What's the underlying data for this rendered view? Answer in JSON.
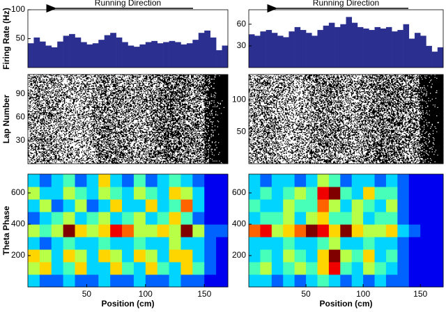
{
  "chart_data": [
    {
      "type": "histogram",
      "annotation": "Running Direction",
      "ylabel": "Firing Rate (Hz)",
      "color": "#2b2f8f",
      "xlim": [
        0,
        170
      ],
      "ylim": [
        0,
        100
      ],
      "yticks": [
        50,
        100
      ],
      "bins": [
        0,
        5,
        10,
        15,
        20,
        25,
        30,
        35,
        40,
        45,
        50,
        55,
        60,
        65,
        70,
        75,
        80,
        85,
        90,
        95,
        100,
        105,
        110,
        115,
        120,
        125,
        130,
        135,
        140,
        145,
        150,
        155,
        160,
        165,
        170
      ],
      "values": [
        42,
        52,
        45,
        38,
        35,
        45,
        55,
        58,
        52,
        44,
        40,
        42,
        48,
        56,
        60,
        52,
        44,
        38,
        36,
        40,
        44,
        46,
        42,
        44,
        46,
        44,
        40,
        42,
        48,
        60,
        64,
        52,
        30,
        38
      ]
    },
    {
      "type": "histogram",
      "annotation": "Running Direction",
      "color": "#2b2f8f",
      "xlim": [
        0,
        170
      ],
      "ylim": [
        0,
        80
      ],
      "yticks": [
        30,
        60
      ],
      "bins": [
        0,
        5,
        10,
        15,
        20,
        25,
        30,
        35,
        40,
        45,
        50,
        55,
        60,
        65,
        70,
        75,
        80,
        85,
        90,
        95,
        100,
        105,
        110,
        115,
        120,
        125,
        130,
        135,
        140,
        145,
        150,
        155,
        160,
        165,
        170
      ],
      "values": [
        46,
        44,
        50,
        52,
        48,
        44,
        42,
        50,
        56,
        52,
        48,
        44,
        52,
        58,
        62,
        56,
        60,
        70,
        62,
        56,
        54,
        52,
        56,
        54,
        56,
        50,
        52,
        60,
        40,
        48,
        44,
        30,
        22,
        28
      ]
    },
    {
      "type": "raster",
      "ylabel": "Lap Number",
      "xlim": [
        0,
        170
      ],
      "ylim": [
        0,
        115
      ],
      "yticks": [
        30,
        60,
        90
      ]
    },
    {
      "type": "raster",
      "xlim": [
        0,
        170
      ],
      "ylim": [
        0,
        140
      ],
      "yticks": [
        50,
        100
      ]
    },
    {
      "type": "heatmap",
      "ylabel": "Theta Phase",
      "xlabel": "Position (cm)",
      "colormap": "jet",
      "xlim": [
        0,
        170
      ],
      "xticks": [
        50,
        100,
        150
      ],
      "ylim": [
        0,
        720
      ],
      "yticks": [
        200,
        400,
        600
      ],
      "z": [
        [
          3,
          2,
          2,
          3,
          2,
          2,
          3,
          2,
          2,
          3,
          2,
          2,
          3,
          2,
          2,
          1,
          1
        ],
        [
          5,
          6,
          3,
          4,
          6,
          3,
          3,
          6,
          4,
          3,
          6,
          4,
          3,
          6,
          4,
          2,
          1
        ],
        [
          6,
          5,
          3,
          6,
          5,
          3,
          6,
          5,
          3,
          6,
          5,
          3,
          6,
          6,
          3,
          2,
          1
        ],
        [
          3,
          2,
          3,
          4,
          3,
          3,
          4,
          3,
          3,
          4,
          3,
          3,
          5,
          3,
          3,
          2,
          1
        ],
        [
          5,
          4,
          5,
          9,
          6,
          5,
          6,
          8,
          7,
          5,
          5,
          6,
          5,
          9,
          5,
          2,
          2
        ],
        [
          2,
          3,
          4,
          5,
          3,
          4,
          5,
          3,
          4,
          5,
          3,
          4,
          6,
          4,
          2,
          1,
          1
        ],
        [
          3,
          5,
          2,
          3,
          5,
          2,
          3,
          6,
          3,
          3,
          6,
          3,
          4,
          7,
          3,
          1,
          1
        ],
        [
          5,
          3,
          3,
          5,
          4,
          3,
          5,
          4,
          3,
          5,
          4,
          3,
          6,
          5,
          3,
          1,
          1
        ],
        [
          3,
          2,
          3,
          4,
          2,
          3,
          6,
          3,
          2,
          4,
          2,
          3,
          4,
          3,
          2,
          1,
          1
        ]
      ]
    },
    {
      "type": "heatmap",
      "xlabel": "Position (cm)",
      "colormap": "jet",
      "xlim": [
        0,
        170
      ],
      "xticks": [
        50,
        100,
        150
      ],
      "ylim": [
        0,
        720
      ],
      "yticks": [
        200,
        400,
        600
      ],
      "z": [
        [
          3,
          3,
          2,
          3,
          2,
          3,
          4,
          3,
          2,
          3,
          2,
          3,
          2,
          2,
          1,
          1,
          1
        ],
        [
          4,
          5,
          3,
          4,
          5,
          4,
          6,
          8,
          4,
          3,
          5,
          4,
          3,
          2,
          1,
          1,
          1
        ],
        [
          3,
          4,
          3,
          5,
          4,
          3,
          6,
          9,
          5,
          4,
          6,
          3,
          4,
          2,
          1,
          1,
          1
        ],
        [
          3,
          3,
          3,
          4,
          3,
          3,
          4,
          5,
          3,
          3,
          4,
          3,
          3,
          2,
          1,
          1,
          1
        ],
        [
          7,
          8,
          5,
          6,
          7,
          9,
          8,
          6,
          9,
          6,
          5,
          5,
          6,
          3,
          2,
          1,
          1
        ],
        [
          3,
          4,
          4,
          5,
          3,
          5,
          6,
          4,
          4,
          5,
          3,
          4,
          4,
          2,
          1,
          1,
          1
        ],
        [
          4,
          3,
          3,
          5,
          4,
          4,
          7,
          5,
          3,
          5,
          4,
          3,
          5,
          2,
          1,
          1,
          1
        ],
        [
          3,
          4,
          3,
          4,
          5,
          4,
          8,
          9,
          4,
          3,
          6,
          4,
          4,
          2,
          1,
          1,
          1
        ],
        [
          3,
          2,
          3,
          3,
          2,
          3,
          5,
          4,
          2,
          3,
          3,
          2,
          3,
          2,
          1,
          1,
          1
        ]
      ]
    }
  ]
}
